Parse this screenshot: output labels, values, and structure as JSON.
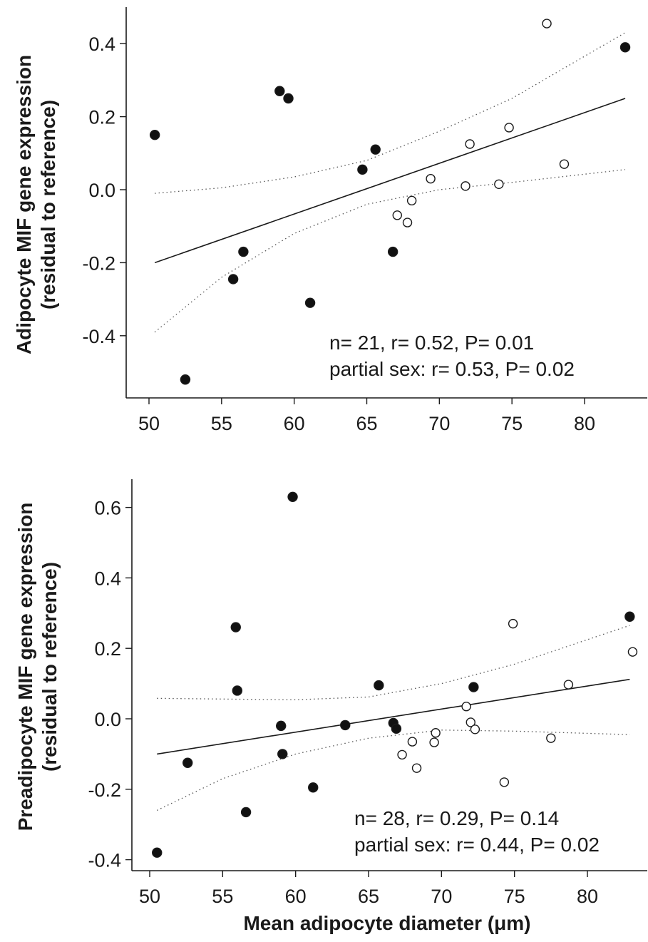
{
  "colors": {
    "ink": "#1a1a1a",
    "open_marker_fill": "#ffffff",
    "filled_marker": "#111111"
  },
  "chart_data": [
    {
      "type": "scatter",
      "title": "",
      "xlabel": "",
      "ylabel_line1": "Adipocyte MIF gene expression",
      "ylabel_line2": "(residual to reference)",
      "xlim": [
        49.5,
        84.5
      ],
      "ylim": [
        -0.57,
        0.5
      ],
      "x_ticks": [
        50,
        55,
        60,
        65,
        70,
        75,
        80
      ],
      "y_ticks": [
        -0.4,
        -0.2,
        0.0,
        0.2,
        0.4
      ],
      "x_tick_labels": [
        "50",
        "55",
        "60",
        "65",
        "70",
        "75",
        "80"
      ],
      "y_tick_labels": [
        "-0.4",
        "-0.2",
        "0.0",
        "0.2",
        "0.4"
      ],
      "grid": false,
      "series": [
        {
          "marker": "filled-circle",
          "points": [
            {
              "x": 50.4,
              "y": 0.15
            },
            {
              "x": 52.5,
              "y": -0.52
            },
            {
              "x": 55.8,
              "y": -0.245
            },
            {
              "x": 56.5,
              "y": -0.17
            },
            {
              "x": 59.0,
              "y": 0.27
            },
            {
              "x": 59.6,
              "y": 0.25
            },
            {
              "x": 61.1,
              "y": -0.31
            },
            {
              "x": 64.7,
              "y": 0.055
            },
            {
              "x": 65.6,
              "y": 0.11
            },
            {
              "x": 66.8,
              "y": -0.17
            },
            {
              "x": 82.8,
              "y": 0.39
            }
          ]
        },
        {
          "marker": "open-circle",
          "points": [
            {
              "x": 67.1,
              "y": -0.07
            },
            {
              "x": 67.8,
              "y": -0.09
            },
            {
              "x": 68.1,
              "y": -0.03
            },
            {
              "x": 69.4,
              "y": 0.03
            },
            {
              "x": 71.8,
              "y": 0.01
            },
            {
              "x": 72.1,
              "y": 0.125
            },
            {
              "x": 74.1,
              "y": 0.015
            },
            {
              "x": 74.8,
              "y": 0.17
            },
            {
              "x": 77.4,
              "y": 0.455
            },
            {
              "x": 78.6,
              "y": 0.07
            }
          ]
        }
      ],
      "fit_line": {
        "x": [
          50.4,
          82.8
        ],
        "y": [
          -0.2,
          0.25
        ]
      },
      "ci_upper": {
        "x": [
          50.4,
          55,
          60,
          65,
          70,
          75,
          82.8
        ],
        "y": [
          -0.01,
          0.005,
          0.035,
          0.08,
          0.16,
          0.25,
          0.43
        ]
      },
      "ci_lower": {
        "x": [
          50.4,
          55,
          60,
          65,
          70,
          75,
          82.8
        ],
        "y": [
          -0.39,
          -0.24,
          -0.12,
          -0.04,
          0.0,
          0.02,
          0.055
        ]
      },
      "annotation_lines": [
        "n= 21, r= 0.52, P= 0.01",
        "partial sex: r= 0.53, P= 0.02"
      ]
    },
    {
      "type": "scatter",
      "title": "",
      "xlabel": "Mean adipocyte diameter (μm)",
      "ylabel_line1": "Preadipocyte MIF gene expression",
      "ylabel_line2": "(residual to reference)",
      "xlim": [
        48.5,
        84.5
      ],
      "ylim": [
        -0.42,
        0.68
      ],
      "x_ticks": [
        50,
        55,
        60,
        65,
        70,
        75,
        80
      ],
      "y_ticks": [
        -0.4,
        -0.2,
        0.0,
        0.2,
        0.4,
        0.6
      ],
      "x_tick_labels": [
        "50",
        "55",
        "60",
        "65",
        "70",
        "75",
        "80"
      ],
      "y_tick_labels": [
        "-0.4",
        "-0.2",
        "0.0",
        "0.2",
        "0.4",
        "0.6"
      ],
      "grid": false,
      "series": [
        {
          "marker": "filled-circle",
          "points": [
            {
              "x": 50.5,
              "y": -0.38
            },
            {
              "x": 52.6,
              "y": -0.125
            },
            {
              "x": 55.9,
              "y": 0.26
            },
            {
              "x": 56.0,
              "y": 0.08
            },
            {
              "x": 56.6,
              "y": -0.265
            },
            {
              "x": 59.0,
              "y": -0.02
            },
            {
              "x": 59.1,
              "y": -0.1
            },
            {
              "x": 59.8,
              "y": 0.63
            },
            {
              "x": 61.2,
              "y": -0.195
            },
            {
              "x": 63.4,
              "y": -0.018
            },
            {
              "x": 65.7,
              "y": 0.095
            },
            {
              "x": 66.7,
              "y": -0.012
            },
            {
              "x": 66.9,
              "y": -0.028
            },
            {
              "x": 72.2,
              "y": 0.09
            },
            {
              "x": 82.9,
              "y": 0.29
            }
          ]
        },
        {
          "marker": "open-circle",
          "points": [
            {
              "x": 67.3,
              "y": -0.102
            },
            {
              "x": 68.0,
              "y": -0.065
            },
            {
              "x": 68.3,
              "y": -0.14
            },
            {
              "x": 69.5,
              "y": -0.067
            },
            {
              "x": 69.6,
              "y": -0.04
            },
            {
              "x": 71.7,
              "y": 0.035
            },
            {
              "x": 72.0,
              "y": -0.01
            },
            {
              "x": 72.3,
              "y": -0.03
            },
            {
              "x": 74.3,
              "y": -0.18
            },
            {
              "x": 74.9,
              "y": 0.27
            },
            {
              "x": 77.5,
              "y": -0.055
            },
            {
              "x": 78.7,
              "y": 0.097
            },
            {
              "x": 83.1,
              "y": 0.19
            }
          ]
        }
      ],
      "fit_line": {
        "x": [
          50.5,
          82.9
        ],
        "y": [
          -0.1,
          0.112
        ]
      },
      "ci_upper": {
        "x": [
          50.5,
          55,
          60,
          65,
          70,
          75,
          82.9
        ],
        "y": [
          0.058,
          0.056,
          0.054,
          0.062,
          0.1,
          0.155,
          0.265
        ]
      },
      "ci_lower": {
        "x": [
          50.5,
          55,
          60,
          65,
          70,
          75,
          82.9
        ],
        "y": [
          -0.26,
          -0.17,
          -0.1,
          -0.055,
          -0.032,
          -0.035,
          -0.045
        ]
      },
      "annotation_lines": [
        "n= 28, r= 0.29, P= 0.14",
        "partial sex: r= 0.44, P= 0.02"
      ]
    }
  ]
}
